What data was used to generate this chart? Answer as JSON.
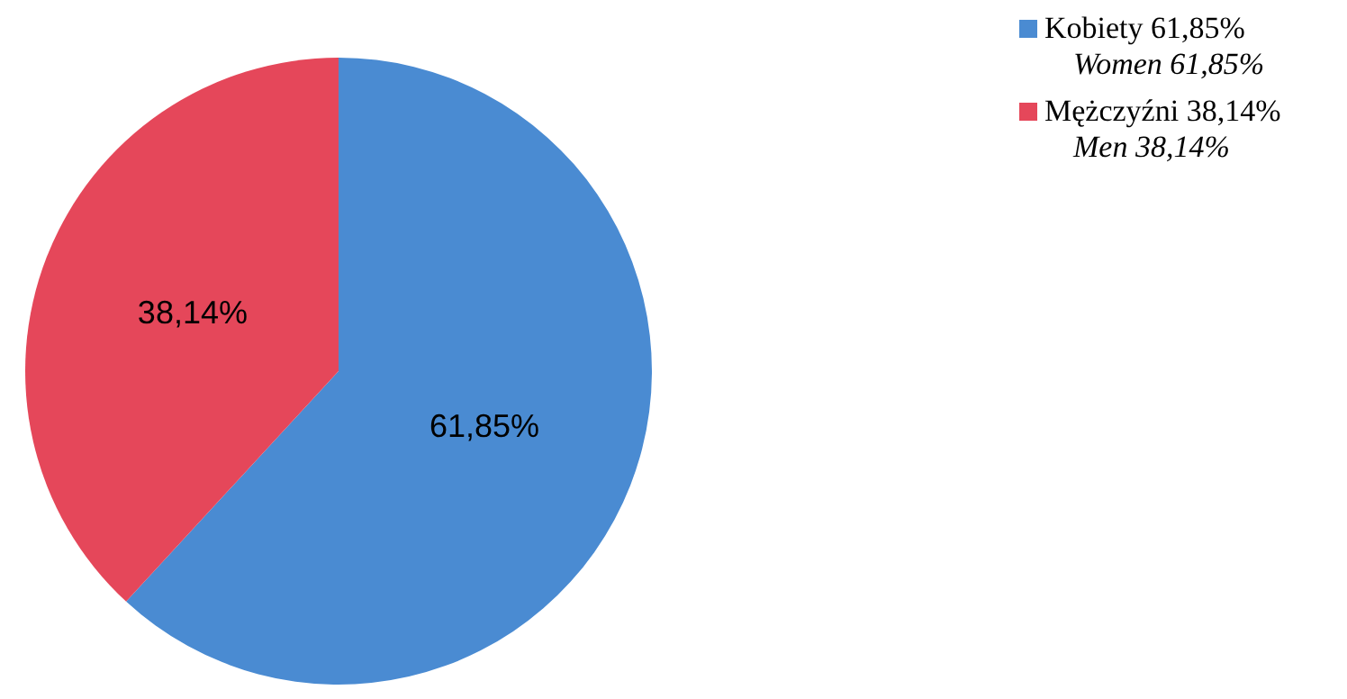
{
  "chart_data": {
    "type": "pie",
    "categories": [
      "Kobiety 61,85%\nWomen 61,85%",
      "Mężczyźni 38,14%\nMen 38,14%"
    ],
    "values": [
      61.85,
      38.14
    ],
    "colors": [
      "#4a8bd2",
      "#e5475a"
    ],
    "value_labels": [
      "61,85%",
      "38,14%"
    ],
    "legend": "top right"
  }
}
